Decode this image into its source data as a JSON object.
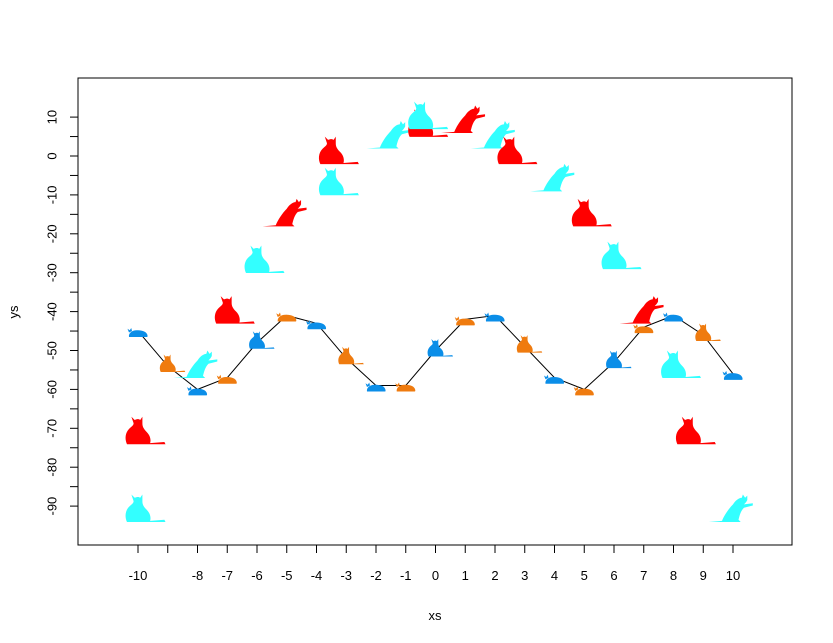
{
  "chart_data": {
    "type": "scatter",
    "title": "",
    "xlabel": "xs",
    "ylabel": "ys",
    "xlim": [
      -11,
      11
    ],
    "ylim": [
      -100,
      14
    ],
    "x_ticks": [
      -10,
      -9,
      -8,
      -7,
      -6,
      -5,
      -4,
      -3,
      -2,
      -1,
      0,
      1,
      2,
      3,
      4,
      5,
      6,
      7,
      8,
      9,
      10
    ],
    "x_tick_labels": [
      "-10",
      "",
      "-8",
      "-7",
      "-6",
      "-5",
      "-4",
      "-3",
      "-2",
      "-1",
      "0",
      "1",
      "2",
      "3",
      "4",
      "5",
      "6",
      "7",
      "8",
      "9",
      "10"
    ],
    "y_ticks": [
      10,
      0,
      -10,
      -20,
      -30,
      -40,
      -50,
      -60,
      -70,
      -80,
      -90
    ],
    "y_tick_labels": [
      "10",
      "0",
      "-10",
      "-20",
      "-30",
      "-40",
      "-50",
      "-60",
      "-70",
      "-80",
      "-90"
    ],
    "y_minor_ticks": [
      5,
      -5,
      -15,
      -25,
      -35,
      -45,
      -55,
      -65,
      -75,
      -85
    ],
    "grid": false,
    "legend": null,
    "marker": "cat silhouettes",
    "series": [
      {
        "name": "arch (cat markers, alternating red/cyan)",
        "line": false,
        "colors": [
          "#ff0000",
          "#33ffff"
        ],
        "points": [
          {
            "x": -10,
            "y": -91,
            "color": "#33ffff"
          },
          {
            "x": -10,
            "y": -71,
            "color": "#ff0000"
          },
          {
            "x": -8,
            "y": -54,
            "color": "#33ffff"
          },
          {
            "x": -7,
            "y": -40,
            "color": "#ff0000"
          },
          {
            "x": -6,
            "y": -27,
            "color": "#33ffff"
          },
          {
            "x": -5,
            "y": -15,
            "color": "#ff0000"
          },
          {
            "x": -3.5,
            "y": -7,
            "color": "#33ffff"
          },
          {
            "x": -3.5,
            "y": 1,
            "color": "#ff0000"
          },
          {
            "x": -1.5,
            "y": 5,
            "color": "#33ffff"
          },
          {
            "x": -0.5,
            "y": 8,
            "color": "#ff0000"
          },
          {
            "x": -0.5,
            "y": 10,
            "color": "#33ffff"
          },
          {
            "x": 1,
            "y": 9,
            "color": "#ff0000"
          },
          {
            "x": 2,
            "y": 5,
            "color": "#33ffff"
          },
          {
            "x": 2.5,
            "y": 1,
            "color": "#ff0000"
          },
          {
            "x": 4,
            "y": -6,
            "color": "#33ffff"
          },
          {
            "x": 5,
            "y": -15,
            "color": "#ff0000"
          },
          {
            "x": 6,
            "y": -26,
            "color": "#33ffff"
          },
          {
            "x": 7,
            "y": -40,
            "color": "#ff0000"
          },
          {
            "x": 8,
            "y": -54,
            "color": "#33ffff"
          },
          {
            "x": 8.5,
            "y": -71,
            "color": "#ff0000"
          },
          {
            "x": 10,
            "y": -91,
            "color": "#33ffff"
          }
        ]
      },
      {
        "name": "wave (cat markers joined by black line, alternating blue/orange)",
        "line": true,
        "line_color": "#000000",
        "colors": [
          "#0b8ee8",
          "#ef7b0f"
        ],
        "points": [
          {
            "x": -10,
            "y": -45,
            "color": "#0b8ee8"
          },
          {
            "x": -9,
            "y": -54,
            "color": "#ef7b0f"
          },
          {
            "x": -8,
            "y": -60,
            "color": "#0b8ee8"
          },
          {
            "x": -7,
            "y": -57,
            "color": "#ef7b0f"
          },
          {
            "x": -6,
            "y": -48,
            "color": "#0b8ee8"
          },
          {
            "x": -5,
            "y": -41,
            "color": "#ef7b0f"
          },
          {
            "x": -4,
            "y": -43,
            "color": "#0b8ee8"
          },
          {
            "x": -3,
            "y": -52,
            "color": "#ef7b0f"
          },
          {
            "x": -2,
            "y": -59,
            "color": "#0b8ee8"
          },
          {
            "x": -1,
            "y": -59,
            "color": "#ef7b0f"
          },
          {
            "x": 0,
            "y": -50,
            "color": "#0b8ee8"
          },
          {
            "x": 1,
            "y": -42,
            "color": "#ef7b0f"
          },
          {
            "x": 2,
            "y": -41,
            "color": "#0b8ee8"
          },
          {
            "x": 3,
            "y": -49,
            "color": "#ef7b0f"
          },
          {
            "x": 4,
            "y": -57,
            "color": "#0b8ee8"
          },
          {
            "x": 5,
            "y": -60,
            "color": "#ef7b0f"
          },
          {
            "x": 6,
            "y": -53,
            "color": "#0b8ee8"
          },
          {
            "x": 7,
            "y": -44,
            "color": "#ef7b0f"
          },
          {
            "x": 8,
            "y": -41,
            "color": "#0b8ee8"
          },
          {
            "x": 9,
            "y": -46,
            "color": "#ef7b0f"
          },
          {
            "x": 10,
            "y": -56,
            "color": "#0b8ee8"
          }
        ]
      }
    ]
  }
}
